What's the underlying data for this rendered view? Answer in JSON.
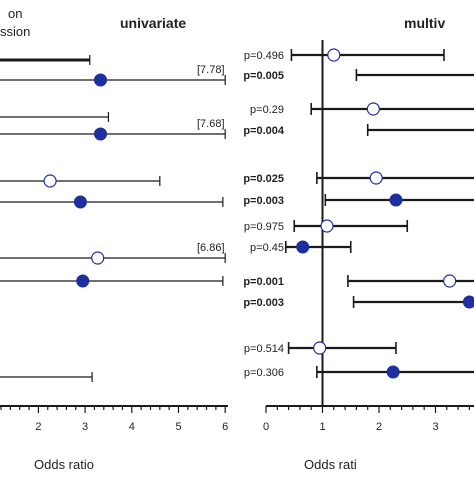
{
  "legend_fragments": [
    "on",
    "ssion"
  ],
  "chart_data": [
    {
      "type": "forest",
      "title": "univariate",
      "xlabel": "Odds ratio",
      "xlim": [
        0,
        6
      ],
      "xticks": [
        "2",
        "3",
        "4",
        "5",
        "6"
      ],
      "rows": [
        {
          "kind": "bar",
          "low": 0,
          "high": 3.1
        },
        {
          "kind": "filled",
          "or": 3.33,
          "low": 0,
          "high": 6,
          "ci_label": "[7.78]"
        },
        {
          "kind": "none",
          "low": 0,
          "high": 3.5
        },
        {
          "kind": "filled",
          "or": 3.33,
          "low": 0,
          "high": 6,
          "ci_label": "[7.68]"
        },
        {
          "kind": "open",
          "or": 2.25,
          "low": 0,
          "high": 4.6
        },
        {
          "kind": "filled",
          "or": 2.9,
          "low": 0,
          "high": 5.95
        },
        {
          "kind": "bar",
          "low": 0,
          "high": 0.1
        },
        {
          "kind": "open",
          "or": 3.27,
          "low": 0,
          "high": 6,
          "ci_label": "[6.86]"
        },
        {
          "kind": "filled",
          "or": 2.95,
          "low": 0,
          "high": 5.95
        },
        {
          "kind": "none",
          "low": 0,
          "high": 3.15
        }
      ]
    },
    {
      "type": "forest",
      "title": "multiv",
      "xlabel": "Odds rati",
      "xlim": [
        0,
        4
      ],
      "xticks": [
        "0",
        "1",
        "2",
        "3"
      ],
      "reference_line": 1,
      "rows": [
        {
          "kind": "open",
          "or": 1.2,
          "low": 0.45,
          "high": 3.15,
          "p": "p=0.496",
          "p_bold": false
        },
        {
          "kind": "filled",
          "or": 4.0,
          "low": 1.6,
          "high": 4.2,
          "p": "p=0.005",
          "p_bold": true
        },
        {
          "kind": "open",
          "or": 1.9,
          "low": 0.8,
          "high": 4.2,
          "p": "p=0.29",
          "p_bold": false
        },
        {
          "kind": "filled",
          "or": 4.0,
          "low": 1.8,
          "high": 4.2,
          "p": "p=0.004",
          "p_bold": true
        },
        {
          "kind": "open",
          "or": 1.95,
          "low": 0.9,
          "high": 4.2,
          "p": "p=0.025",
          "p_bold": true
        },
        {
          "kind": "filled",
          "or": 2.3,
          "low": 1.05,
          "high": 4.2,
          "p": "p=0.003",
          "p_bold": true
        },
        {
          "kind": "open",
          "or": 1.08,
          "low": 0.5,
          "high": 2.5,
          "p": "p=0.975",
          "p_bold": false
        },
        {
          "kind": "filled",
          "or": 0.65,
          "low": 0.35,
          "high": 1.5,
          "p": "p=0.45",
          "p_bold": false
        },
        {
          "kind": "open",
          "or": 3.25,
          "low": 1.45,
          "high": 4.2,
          "p": "p=0.001",
          "p_bold": true
        },
        {
          "kind": "filled",
          "or": 3.6,
          "low": 1.55,
          "high": 4.2,
          "p": "p=0.003",
          "p_bold": true
        },
        {
          "kind": "open",
          "or": 0.95,
          "low": 0.4,
          "high": 2.3,
          "p": "p=0.514",
          "p_bold": false
        },
        {
          "kind": "filled",
          "or": 2.25,
          "low": 0.9,
          "high": 4.2,
          "p": "p=0.306",
          "p_bold": false
        }
      ]
    }
  ]
}
